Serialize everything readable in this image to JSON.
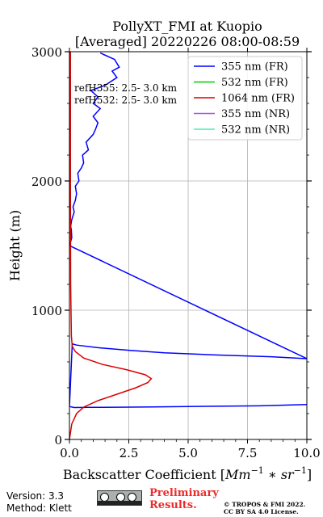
{
  "chart_data": {
    "type": "line",
    "title_line1": "PollyXT_FMI at Kuopio",
    "title_line2": "[Averaged] 20220226 08:00-08:59",
    "xlabel_prefix": "Backscatter Coefficient [",
    "xlabel_unit": "Mm",
    "xlabel_unit_exp": "−1",
    "xlabel_mid": " ∗ ",
    "xlabel_unit2": "sr",
    "xlabel_unit2_exp": "−1",
    "xlabel_suffix": "]",
    "ylabel": "Height (m)",
    "xlim": [
      0,
      10
    ],
    "ylim": [
      0,
      3000
    ],
    "xticks": [
      "0.0",
      "2.5",
      "5.0",
      "7.5",
      "10.0"
    ],
    "xtick_values": [
      0,
      2.5,
      5,
      7.5,
      10
    ],
    "yticks": [
      "0",
      "1000",
      "2000",
      "3000"
    ],
    "ytick_values": [
      0,
      1000,
      2000,
      3000
    ],
    "grid": true,
    "legend_position": "top-right",
    "annotations": [
      "refH355:  2.5- 3.0 km",
      "refH532:  2.5- 3.0 km"
    ],
    "series": [
      {
        "name": "355 nm (FR)",
        "color": "#0000ff",
        "x": [
          10.0,
          8.0,
          5.0,
          3.5,
          2.5,
          0.8,
          0.2,
          0.0,
          0.12,
          0.3,
          1.2,
          2.5,
          4.0,
          6.0,
          8.5,
          10.0,
          0.0,
          0.1,
          0.08,
          0.05,
          0.1,
          0.2,
          0.15,
          0.25,
          0.3,
          0.25,
          0.4,
          0.35,
          0.5,
          0.6,
          0.55,
          0.8,
          0.7,
          1.0,
          1.1,
          1.2,
          1.0,
          1.3,
          1.0,
          1.2,
          0.9,
          1.5,
          2.0,
          1.8,
          2.1,
          1.9,
          1.3
        ],
        "y": [
          270,
          260,
          255,
          252,
          250,
          248,
          247,
          255,
          740,
          730,
          710,
          690,
          670,
          655,
          640,
          625,
          1500,
          1560,
          1620,
          1650,
          1700,
          1760,
          1800,
          1850,
          1900,
          1960,
          2000,
          2060,
          2100,
          2140,
          2200,
          2240,
          2300,
          2360,
          2400,
          2450,
          2500,
          2560,
          2600,
          2650,
          2700,
          2740,
          2800,
          2850,
          2880,
          2940,
          2990
        ]
      },
      {
        "name": "532 nm (FR)",
        "color": "#00cc00",
        "x": [],
        "y": []
      },
      {
        "name": "1064 nm (FR)",
        "color": "#dd0000",
        "x": [
          0.0,
          0.1,
          0.3,
          0.6,
          1.2,
          2.0,
          2.8,
          3.3,
          3.45,
          3.2,
          2.4,
          1.4,
          0.6,
          0.25,
          0.12,
          0.08,
          0.05,
          0.04,
          0.04
        ],
        "y": [
          0,
          120,
          200,
          250,
          300,
          350,
          400,
          440,
          470,
          500,
          540,
          580,
          630,
          680,
          720,
          800,
          1200,
          2000,
          3000
        ]
      },
      {
        "name": "355 nm (NR)",
        "color": "#aa55ee",
        "x": [],
        "y": []
      },
      {
        "name": "532 nm (NR)",
        "color": "#44eebb",
        "x": [],
        "y": []
      }
    ]
  },
  "footer": {
    "version": "Version: 3.3",
    "method": "Method: Klett",
    "preliminary_line1": "Preliminary",
    "preliminary_line2": "Results.",
    "copyright_line1": "© TROPOS & FMI 2022.",
    "copyright_line2": "CC BY SA 4.0 License.",
    "cc_badge_icons": [
      "cc-icon",
      "by-icon",
      "sa-icon"
    ]
  }
}
